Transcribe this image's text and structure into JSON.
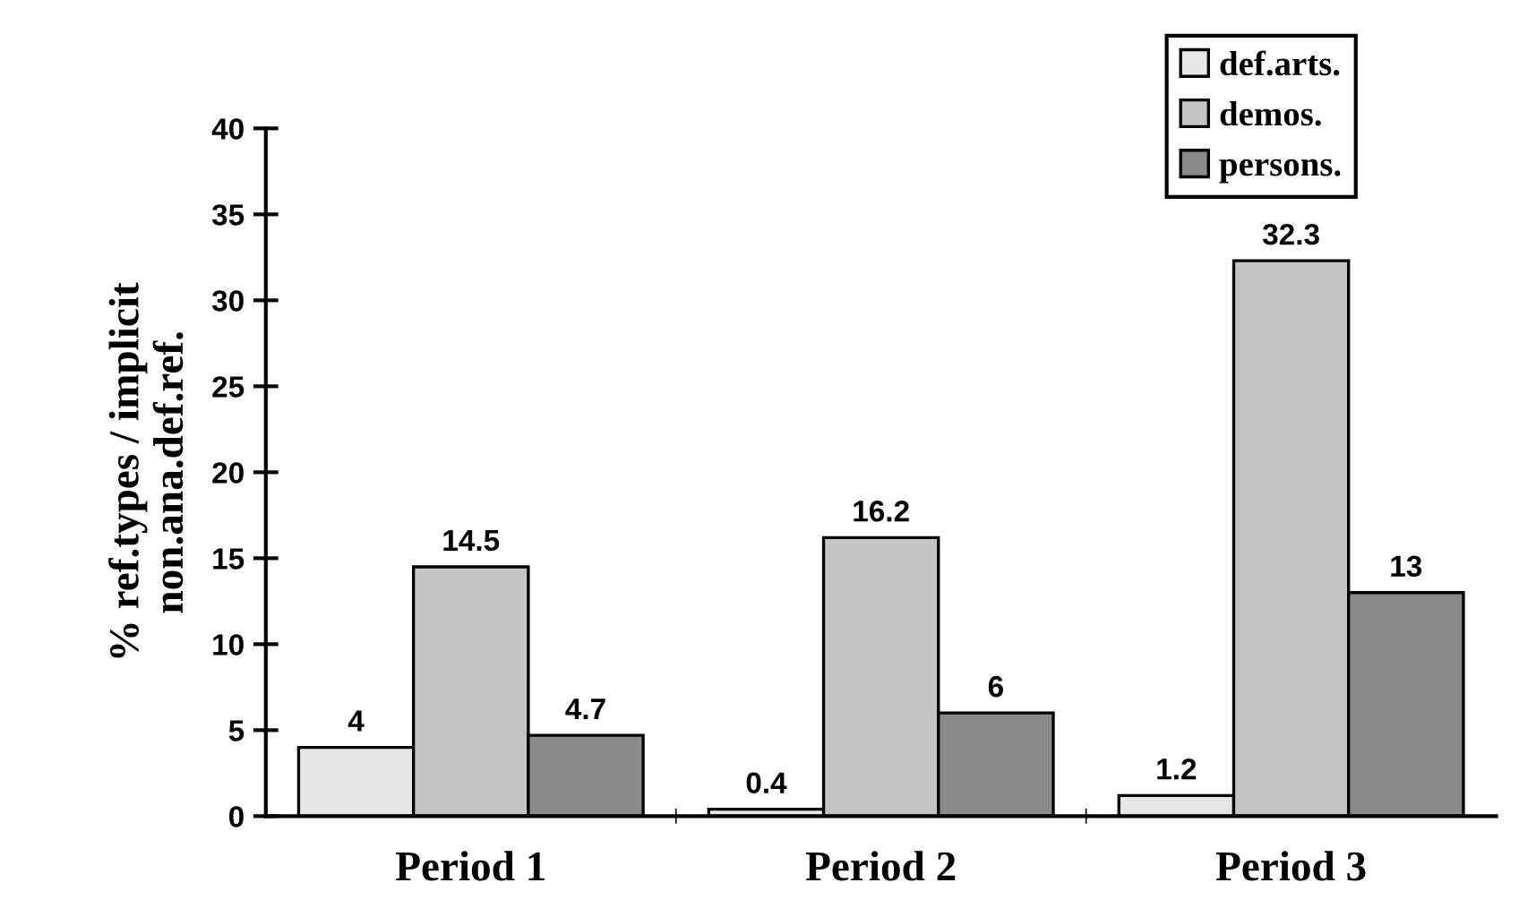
{
  "chart_data": {
    "type": "bar",
    "ylabel": "% ref.types / implicit\nnon.ana.def.ref.",
    "categories": [
      "Period 1",
      "Period 2",
      "Period 3"
    ],
    "series": [
      {
        "name": "def.arts.",
        "color": "#e6e6e6",
        "values": [
          4,
          0.4,
          1.2
        ]
      },
      {
        "name": "demos.",
        "color": "#c4c4c4",
        "values": [
          14.5,
          16.2,
          32.3
        ]
      },
      {
        "name": "persons.",
        "color": "#8a8a8a",
        "values": [
          4.7,
          6,
          13
        ]
      }
    ],
    "ylim": [
      0,
      40
    ],
    "yticks": [
      0,
      5,
      10,
      15,
      20,
      25,
      30,
      35,
      40
    ],
    "data_labels": true,
    "grid": false,
    "legend": "top right"
  }
}
